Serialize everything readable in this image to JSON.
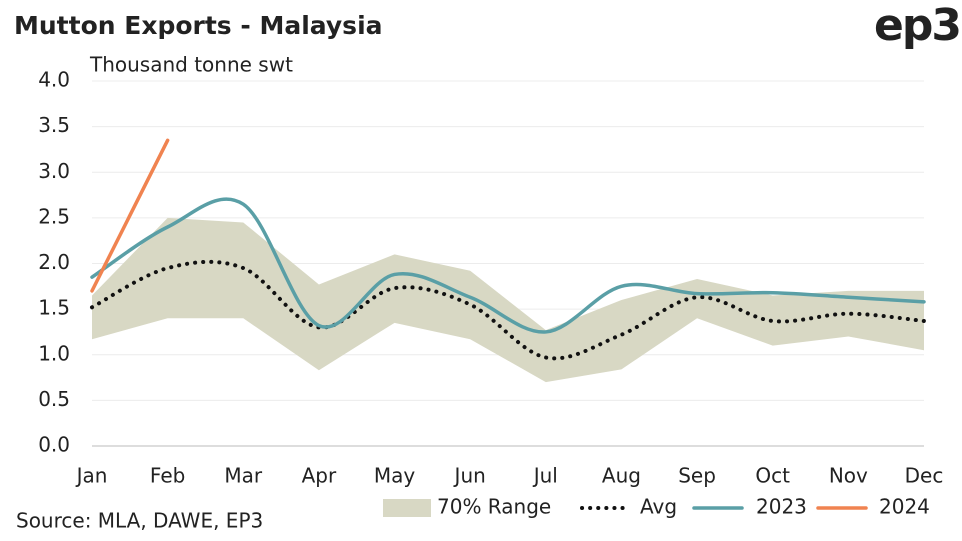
{
  "chart_data": {
    "type": "line",
    "title": "Mutton Exports - Malaysia",
    "logo": "ep3",
    "y_label": "Thousand tonne swt",
    "source": "Source: MLA, DAWE, EP3",
    "categories": [
      "Jan",
      "Feb",
      "Mar",
      "Apr",
      "May",
      "Jun",
      "Jul",
      "Aug",
      "Sep",
      "Oct",
      "Nov",
      "Dec"
    ],
    "range": {
      "name": "70% Range",
      "color": "#d8d8c4",
      "low": [
        1.17,
        1.4,
        1.4,
        0.83,
        1.35,
        1.17,
        0.7,
        0.84,
        1.4,
        1.1,
        1.2,
        1.05
      ],
      "high": [
        1.65,
        2.5,
        2.45,
        1.77,
        2.1,
        1.92,
        1.27,
        1.6,
        1.83,
        1.65,
        1.7,
        1.7
      ]
    },
    "series": [
      {
        "name": "Avg",
        "color": "#111111",
        "style": "dotted",
        "values": [
          1.52,
          1.95,
          1.95,
          1.3,
          1.73,
          1.55,
          0.97,
          1.22,
          1.63,
          1.37,
          1.45,
          1.37
        ]
      },
      {
        "name": "2023",
        "color": "#5a9fa6",
        "style": "solid",
        "values": [
          1.85,
          2.4,
          2.65,
          1.32,
          1.88,
          1.63,
          1.25,
          1.75,
          1.67,
          1.68,
          1.63,
          1.58
        ]
      },
      {
        "name": "2024",
        "color": "#f08350",
        "style": "solid",
        "values": [
          1.7,
          3.35,
          null,
          null,
          null,
          null,
          null,
          null,
          null,
          null,
          null,
          null
        ]
      }
    ],
    "ylim": [
      0,
      4
    ],
    "yticks": [
      {
        "value": 0,
        "label": "0.0"
      },
      0.5,
      {
        "value": 1,
        "label": "1.0"
      },
      1.5,
      {
        "value": 2,
        "label": "2.0"
      },
      2.5,
      {
        "value": 3,
        "label": "3.0"
      },
      3.5,
      {
        "value": 4,
        "label": "4.0"
      }
    ],
    "grid": true
  }
}
